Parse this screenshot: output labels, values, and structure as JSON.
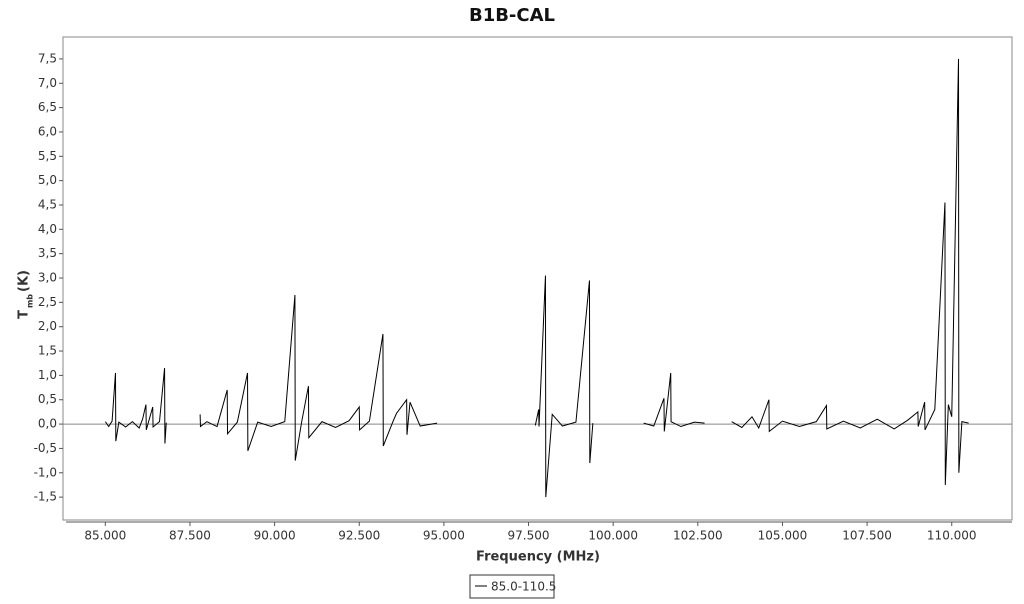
{
  "chart_data": {
    "type": "line",
    "title": "B1B-CAL",
    "x_label": "Frequency (MHz)",
    "y_label": "T",
    "y_label_sub": "mb",
    "y_label_unit": "(K)",
    "xlim": [
      83.75,
      111.78
    ],
    "ylim": [
      -1.97,
      7.95
    ],
    "xticks": [
      {
        "value": 85,
        "label": "85.000"
      },
      {
        "value": 87.5,
        "label": "87.500"
      },
      {
        "value": 90,
        "label": "90.000"
      },
      {
        "value": 92.5,
        "label": "92.500"
      },
      {
        "value": 95,
        "label": "95.000"
      },
      {
        "value": 97.5,
        "label": "97.500"
      },
      {
        "value": 100,
        "label": "100.000"
      },
      {
        "value": 102.5,
        "label": "102.500"
      },
      {
        "value": 105,
        "label": "105.000"
      },
      {
        "value": 107.5,
        "label": "107.500"
      },
      {
        "value": 110,
        "label": "110.000"
      }
    ],
    "yticks": [
      {
        "value": -1.5,
        "label": "-1,5"
      },
      {
        "value": -1,
        "label": "-1,0"
      },
      {
        "value": -0.5,
        "label": "-0,5"
      },
      {
        "value": 0,
        "label": "0,0"
      },
      {
        "value": 0.5,
        "label": "0,5"
      },
      {
        "value": 1,
        "label": "1,0"
      },
      {
        "value": 1.5,
        "label": "1,5"
      },
      {
        "value": 2,
        "label": "2,0"
      },
      {
        "value": 2.5,
        "label": "2,5"
      },
      {
        "value": 3,
        "label": "3,0"
      },
      {
        "value": 3.5,
        "label": "3,5"
      },
      {
        "value": 4,
        "label": "4,0"
      },
      {
        "value": 4.5,
        "label": "4,5"
      },
      {
        "value": 5,
        "label": "5,0"
      },
      {
        "value": 5.5,
        "label": "5,5"
      },
      {
        "value": 6,
        "label": "6,0"
      },
      {
        "value": 6.5,
        "label": "6,5"
      },
      {
        "value": 7,
        "label": "7,0"
      },
      {
        "value": 7.5,
        "label": "7,5"
      }
    ],
    "x": [
      85.0,
      85.1,
      85.2,
      85.3,
      85.31,
      85.4,
      85.6,
      85.8,
      86.0,
      86.1,
      86.2,
      86.21,
      86.4,
      86.41,
      86.6,
      86.75,
      86.76,
      86.8,
      87.3,
      87.8,
      87.81,
      88.0,
      88.3,
      88.6,
      88.61,
      88.9,
      89.2,
      89.21,
      89.5,
      89.9,
      90.3,
      90.6,
      90.61,
      90.8,
      91.0,
      91.01,
      91.4,
      91.8,
      92.2,
      92.5,
      92.51,
      92.8,
      93.2,
      93.21,
      93.5,
      93.6,
      93.9,
      93.91,
      94.0,
      94.3,
      94.8,
      96.0,
      97.7,
      97.8,
      97.81,
      98.0,
      98.01,
      98.2,
      98.5,
      98.9,
      99.3,
      99.31,
      99.4,
      100.0,
      100.9,
      101.2,
      101.5,
      101.51,
      101.7,
      101.71,
      102.0,
      102.4,
      102.7,
      103.0,
      103.5,
      103.8,
      104.1,
      104.3,
      104.6,
      104.61,
      105.0,
      105.5,
      106.0,
      106.3,
      106.31,
      106.8,
      107.3,
      107.8,
      108.3,
      108.7,
      109.0,
      109.01,
      109.2,
      109.21,
      109.5,
      109.8,
      109.81,
      109.9,
      110.0,
      110.2,
      110.21,
      110.3,
      110.5
    ],
    "series": [
      {
        "name": "85.0-110.5",
        "color": "#000000",
        "values": [
          0.05,
          -0.05,
          0.06,
          1.05,
          -0.35,
          0.04,
          -0.06,
          0.05,
          -0.08,
          0.1,
          0.4,
          -0.12,
          0.35,
          -0.06,
          0.05,
          1.15,
          -0.4,
          0.03,
          null,
          0.2,
          -0.05,
          0.05,
          -0.05,
          0.7,
          -0.2,
          0.04,
          1.05,
          -0.55,
          0.04,
          -0.05,
          0.05,
          2.65,
          -0.75,
          0.05,
          0.78,
          -0.28,
          0.05,
          -0.07,
          0.07,
          0.35,
          -0.12,
          0.06,
          1.85,
          -0.45,
          0.06,
          0.22,
          0.5,
          -0.22,
          0.45,
          -0.04,
          0.02,
          null,
          -0.03,
          0.3,
          -0.05,
          3.05,
          -1.5,
          0.2,
          -0.04,
          0.04,
          2.95,
          -0.8,
          0.02,
          null,
          0.02,
          -0.04,
          0.53,
          -0.15,
          1.05,
          0.05,
          -0.05,
          0.04,
          0.02,
          null,
          0.05,
          -0.07,
          0.15,
          -0.08,
          0.5,
          -0.15,
          0.06,
          -0.05,
          0.05,
          0.38,
          -0.1,
          0.06,
          -0.08,
          0.1,
          -0.1,
          0.08,
          0.25,
          -0.05,
          0.45,
          -0.12,
          0.3,
          4.55,
          -1.25,
          0.4,
          0.15,
          7.5,
          -1.0,
          0.05,
          0.02
        ]
      }
    ]
  }
}
